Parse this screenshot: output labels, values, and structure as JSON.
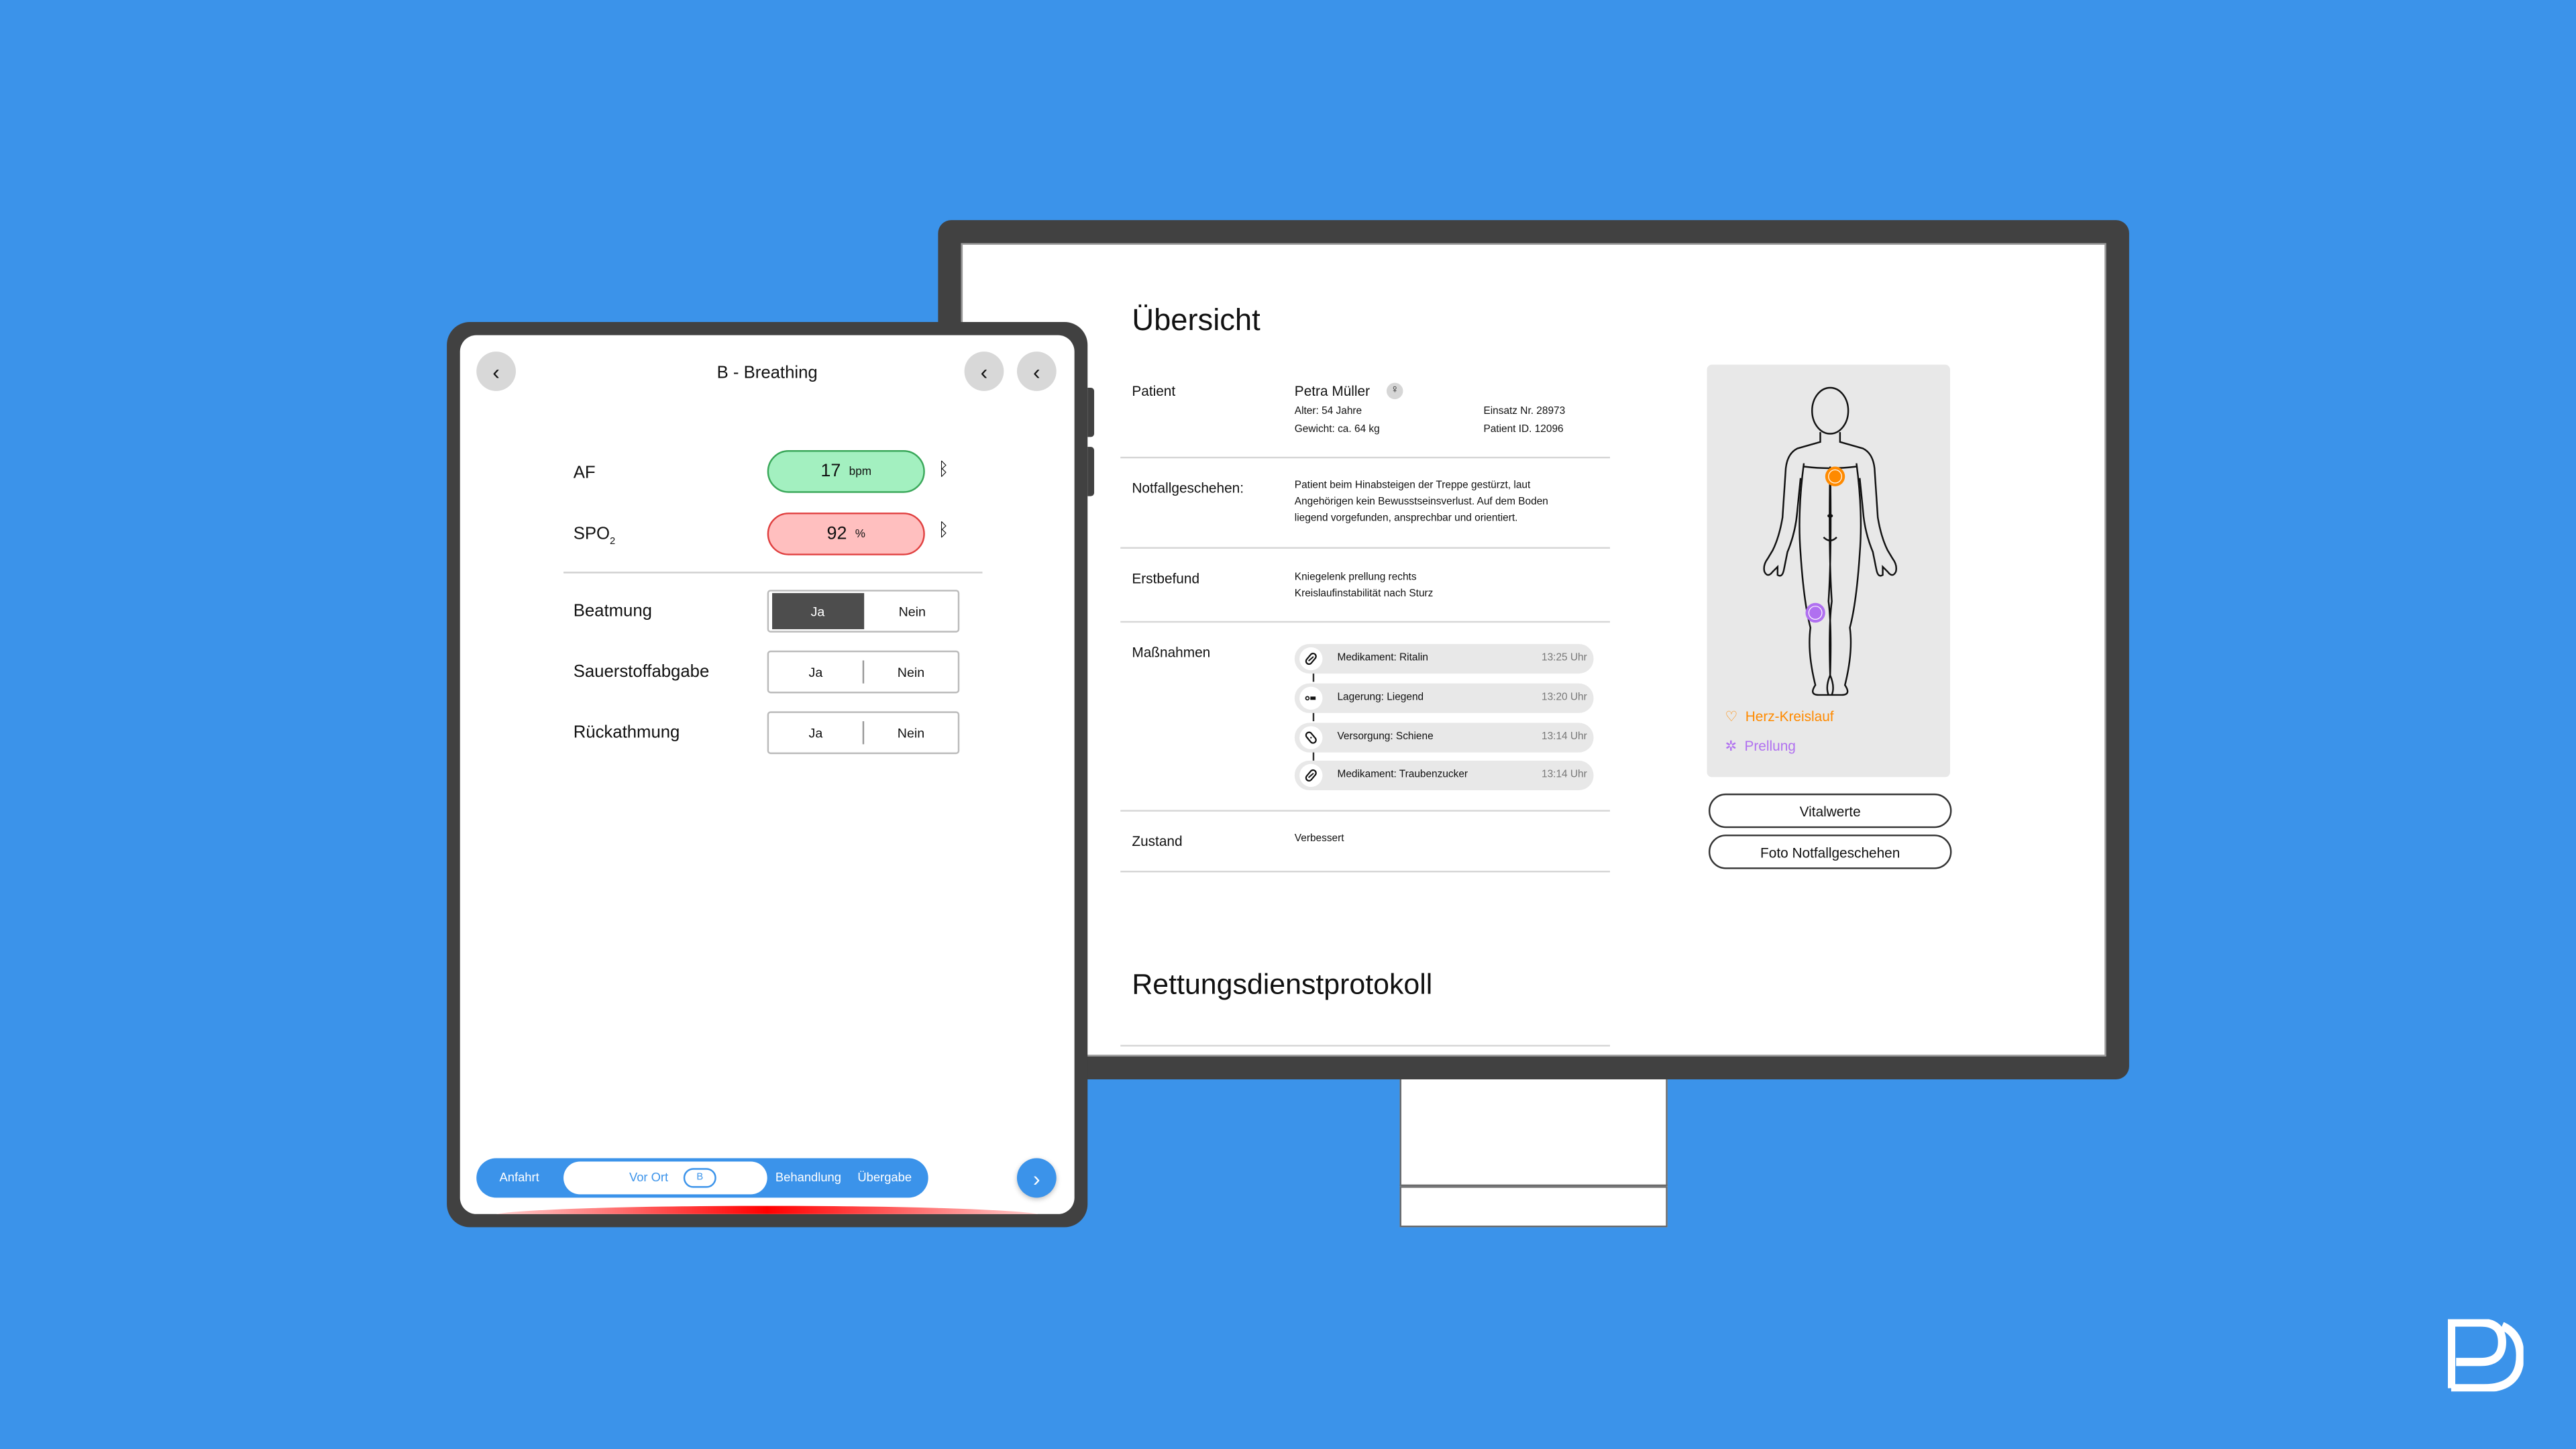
{
  "colors": {
    "background": "#3b93ea",
    "accent": "#3b93ea",
    "normal": "#a3f0c0",
    "alert": "#ffbfbf",
    "cardio": "#ff8a00",
    "contusion": "#b070f0"
  },
  "tablet": {
    "title": "B - Breathing",
    "vitals": [
      {
        "label": "AF",
        "value": "17",
        "unit": "bpm",
        "status": "normal",
        "icon": "bluetooth-icon"
      },
      {
        "label": "SPO",
        "label_sub": "2",
        "value": "92",
        "unit": "%",
        "status": "alert",
        "icon": "bluetooth-icon"
      }
    ],
    "toggles": [
      {
        "label": "Beatmung",
        "yes": "Ja",
        "no": "Nein",
        "selected": "Ja"
      },
      {
        "label": "Sauerstoffabgabe",
        "yes": "Ja",
        "no": "Nein",
        "selected": null
      },
      {
        "label": "Rückathmung",
        "yes": "Ja",
        "no": "Nein",
        "selected": null
      }
    ],
    "nav": {
      "steps": [
        "Anfahrt",
        "Vor Ort",
        "Behandlung",
        "Übergabe"
      ],
      "active": "Vor Ort",
      "active_badge": "B"
    }
  },
  "monitor": {
    "title": "Übersicht",
    "patient": {
      "label": "Patient",
      "name": "Petra Müller",
      "gender_icon": "female-icon",
      "age": "Alter: 54 Jahre",
      "weight": "Gewicht: ca. 64 kg",
      "mission": "Einsatz Nr. 28973",
      "patient_id": "Patient ID. 12096"
    },
    "incident": {
      "label": "Notfallgeschehen:",
      "lines": [
        "Patient beim Hinabsteigen der Treppe gestürzt, laut",
        "Angehörigen kein Bewusstseinsverlust. Auf dem Boden",
        "liegend vorgefunden, ansprechbar und orientiert."
      ]
    },
    "findings": {
      "label": "Erstbefund",
      "lines": [
        "Kniegelenk prellung rechts",
        "Kreislaufinstabilität nach Sturz"
      ]
    },
    "measures": {
      "label": "Maßnahmen",
      "items": [
        {
          "icon": "pill-icon",
          "text": "Medikament: Ritalin",
          "time": "13:25 Uhr"
        },
        {
          "icon": "lying-position-icon",
          "text": "Lagerung: Liegend",
          "time": "13:20 Uhr"
        },
        {
          "icon": "bandage-icon",
          "text": "Versorgung: Schiene",
          "time": "13:14 Uhr"
        },
        {
          "icon": "pill-icon",
          "text": "Medikament: Traubenzucker",
          "time": "13:14 Uhr"
        }
      ]
    },
    "condition": {
      "label": "Zustand",
      "value": "Verbessert"
    },
    "section2": "Rettungsdienstprotokoll",
    "legend": [
      {
        "icon": "heart-icon",
        "label": "Herz-Kreislauf"
      },
      {
        "icon": "contusion-icon",
        "label": "Prellung"
      }
    ],
    "buttons": {
      "vitals": "Vitalwerte",
      "photo": "Foto Notfallgeschehen"
    }
  }
}
